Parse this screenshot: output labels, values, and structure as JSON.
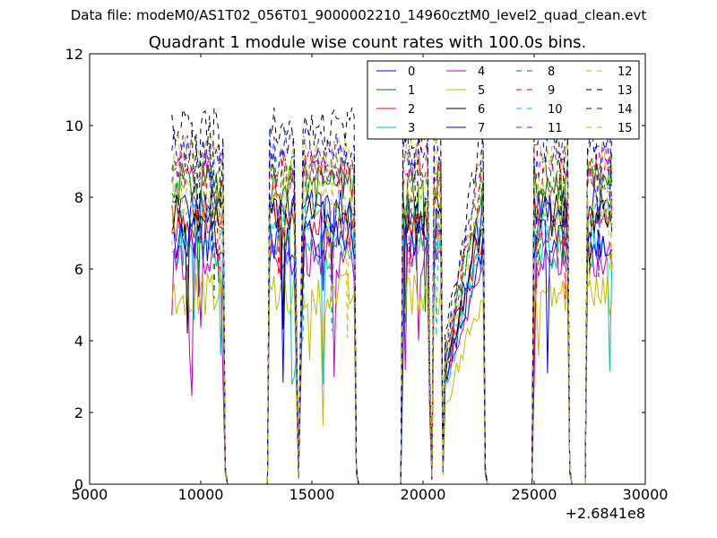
{
  "suptitle": "Data file: modeM0/AS1T02_056T01_9000002210_14960cztM0_level2_quad_clean.evt",
  "chart_data": {
    "type": "line",
    "title": "Quadrant 1 module wise count rates with 100.0s bins.",
    "xlabel": "",
    "ylabel": "",
    "x_offset_label": "+2.6841e8",
    "xlim": [
      5000,
      30000
    ],
    "ylim": [
      0,
      12
    ],
    "xticks": [
      "5000",
      "10000",
      "15000",
      "20000",
      "25000",
      "30000"
    ],
    "yticks": [
      "0",
      "2",
      "4",
      "6",
      "8",
      "10",
      "12"
    ],
    "grid": false,
    "legend_position": "top-right",
    "bin_width": 100,
    "envelope_x": [
      8700,
      11000,
      11100,
      11200,
      13000,
      13100,
      14250,
      14350,
      14450,
      14550,
      16900,
      17000,
      17100,
      19000,
      19100,
      20250,
      20300,
      20400,
      20500,
      20800,
      20900,
      20950,
      22700,
      22800,
      22900,
      24900,
      25000,
      26500,
      26600,
      26700,
      27300,
      27400,
      28550
    ],
    "envelope_f": [
      1,
      1,
      0.05,
      0,
      0,
      1,
      1,
      0.05,
      0,
      1,
      1,
      0.05,
      0,
      0,
      1,
      1,
      0.35,
      0.02,
      1,
      1,
      0.05,
      0.4,
      1,
      0.05,
      0,
      0,
      1,
      1,
      0.05,
      0,
      0,
      1,
      1
    ],
    "series": [
      {
        "name": "0",
        "level": 7.7,
        "color": "#0000ff",
        "dash": false
      },
      {
        "name": "1",
        "level": 8.4,
        "color": "#008000",
        "dash": false
      },
      {
        "name": "2",
        "level": 7.2,
        "color": "#ff0000",
        "dash": false
      },
      {
        "name": "3",
        "level": 6.6,
        "color": "#00bfbf",
        "dash": false
      },
      {
        "name": "4",
        "level": 6.3,
        "color": "#bf00bf",
        "dash": false
      },
      {
        "name": "5",
        "level": 5.3,
        "color": "#bfbf00",
        "dash": false
      },
      {
        "name": "6",
        "level": 7.5,
        "color": "#000000",
        "dash": false
      },
      {
        "name": "7",
        "level": 6.8,
        "color": "#0000ff",
        "dash": false
      },
      {
        "name": "8",
        "level": 8.7,
        "color": "#008000",
        "dash": true
      },
      {
        "name": "9",
        "level": 8.6,
        "color": "#ff0000",
        "dash": true
      },
      {
        "name": "10",
        "level": 7.3,
        "color": "#00bfbf",
        "dash": true
      },
      {
        "name": "11",
        "level": 8.9,
        "color": "#bf00bf",
        "dash": true
      },
      {
        "name": "12",
        "level": 9.2,
        "color": "#bfbf00",
        "dash": true
      },
      {
        "name": "13",
        "level": 9.9,
        "color": "#000000",
        "dash": true
      },
      {
        "name": "14",
        "level": 9.4,
        "color": "#0000ff",
        "dash": true
      },
      {
        "name": "15",
        "level": 8.0,
        "color": "#bfbf00",
        "dash": true
      }
    ]
  }
}
